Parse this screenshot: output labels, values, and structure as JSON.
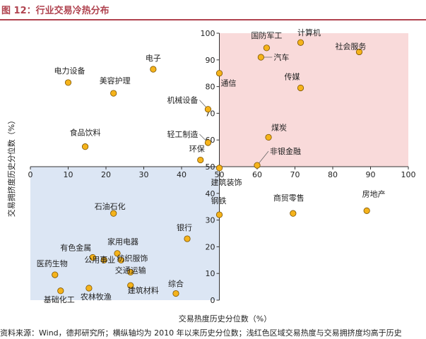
{
  "figure": {
    "title": "图 12：行业交易冷热分布",
    "source": "资料来源：Wind，德邦研究所；横纵轴均为 2010 年以来历史分位数；浅红色区域交易热度与交易拥挤度均高于历史"
  },
  "chart_data": {
    "type": "scatter",
    "title": "图 12：行业交易冷热分布",
    "xlabel": "交易热度历史分位数（%）",
    "ylabel": "交易拥挤度历史分位数（%）",
    "xlim": [
      0,
      100
    ],
    "ylim": [
      0,
      100
    ],
    "x_ticks": [
      0,
      10,
      20,
      30,
      40,
      50,
      60,
      70,
      80,
      90,
      100
    ],
    "y_ticks": [
      0,
      10,
      20,
      30,
      40,
      50,
      60,
      70,
      80,
      90,
      100
    ],
    "axis_crossing": {
      "x": 50,
      "y": 50
    },
    "colors": {
      "marker": "#f5b31b",
      "marker_edge": "#7a5200",
      "hot_zone": "#f9dada",
      "cold_zone": "#dce6f4",
      "title": "#b0434f"
    },
    "points": [
      {
        "label": "计算机",
        "x": 71.5,
        "y": 96.5
      },
      {
        "label": "国防军工",
        "x": 62.5,
        "y": 94.5
      },
      {
        "label": "汽车",
        "x": 61.0,
        "y": 91.0
      },
      {
        "label": "社会服务",
        "x": 87.0,
        "y": 93.0
      },
      {
        "label": "传媒",
        "x": 71.5,
        "y": 79.5
      },
      {
        "label": "通信",
        "x": 50.0,
        "y": 85.0
      },
      {
        "label": "机械设备",
        "x": 47.0,
        "y": 71.5
      },
      {
        "label": "煤炭",
        "x": 63.0,
        "y": 61.0
      },
      {
        "label": "轻工制造",
        "x": 47.0,
        "y": 59.0
      },
      {
        "label": "环保",
        "x": 45.0,
        "y": 52.5
      },
      {
        "label": "非银金融",
        "x": 60.0,
        "y": 50.5
      },
      {
        "label": "电力设备",
        "x": 10.0,
        "y": 81.5
      },
      {
        "label": "电子",
        "x": 32.5,
        "y": 86.5
      },
      {
        "label": "美容护理",
        "x": 22.0,
        "y": 77.5
      },
      {
        "label": "食品饮料",
        "x": 14.5,
        "y": 57.5
      },
      {
        "label": "建筑装饰",
        "x": 50.0,
        "y": 49.5
      },
      {
        "label": "钢铁",
        "x": 50.0,
        "y": 32.0
      },
      {
        "label": "商贸零售",
        "x": 69.5,
        "y": 32.5
      },
      {
        "label": "房地产",
        "x": 89.0,
        "y": 33.5
      },
      {
        "label": "石油石化",
        "x": 22.0,
        "y": 32.5
      },
      {
        "label": "银行",
        "x": 41.5,
        "y": 23.0
      },
      {
        "label": "家用电器",
        "x": 23.0,
        "y": 17.5
      },
      {
        "label": "有色金属",
        "x": 16.5,
        "y": 16.0
      },
      {
        "label": "纺织服饰",
        "x": 24.0,
        "y": 15.0
      },
      {
        "label": "医药生物",
        "x": 6.5,
        "y": 9.5
      },
      {
        "label": "公用事业",
        "x": 19.5,
        "y": 15.0
      },
      {
        "label": "交通运输",
        "x": 26.5,
        "y": 10.5
      },
      {
        "label": "基础化工",
        "x": 8.0,
        "y": 3.5
      },
      {
        "label": "农林牧渔",
        "x": 15.5,
        "y": 4.5
      },
      {
        "label": "建筑材料",
        "x": 26.5,
        "y": 5.5
      },
      {
        "label": "综合",
        "x": 38.5,
        "y": 2.5
      }
    ]
  }
}
